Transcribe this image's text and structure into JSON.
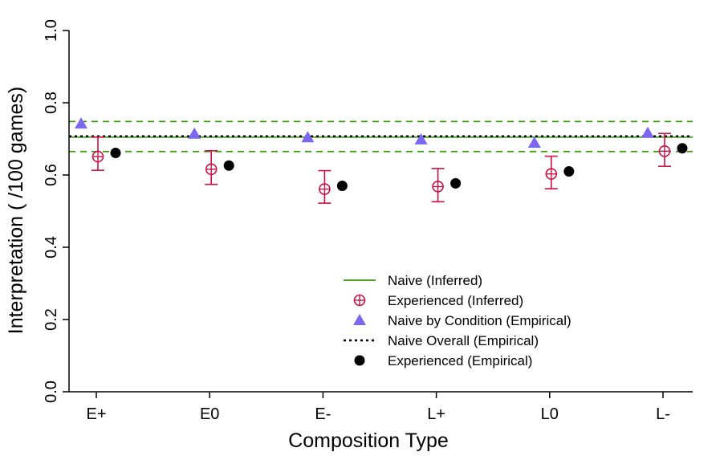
{
  "chart_data": {
    "type": "scatter",
    "title": "",
    "xlabel": "Composition Type",
    "ylabel": "Interpretation ( /100 games)",
    "categories": [
      "E+",
      "E0",
      "E-",
      "L+",
      "L0",
      "L-"
    ],
    "ylim": [
      0,
      1.0
    ],
    "yticks": [
      "0.0",
      "0.2",
      "0.4",
      "0.6",
      "0.8",
      "1.0"
    ],
    "grid": false,
    "legend_position": "bottom-center",
    "naive_inferred": {
      "name": "Naive (Inferred)",
      "color": "#3a9a10",
      "mean": 0.705,
      "lower": 0.665,
      "upper": 0.748
    },
    "naive_overall": {
      "name": "Naive Overall (Empirical)",
      "color": "#000000",
      "value": 0.707
    },
    "series": [
      {
        "name": "Experienced (Inferred)",
        "color": "#cc1144",
        "marker": "crossed-circle",
        "values": [
          0.651,
          0.616,
          0.561,
          0.568,
          0.603,
          0.666
        ],
        "lower": [
          0.613,
          0.574,
          0.522,
          0.526,
          0.562,
          0.624
        ],
        "upper": [
          0.705,
          0.667,
          0.612,
          0.618,
          0.652,
          0.715
        ]
      },
      {
        "name": "Naive by Condition (Empirical)",
        "color": "#7b68ee",
        "marker": "triangle",
        "values": [
          0.742,
          0.714,
          0.704,
          0.698,
          0.689,
          0.716
        ]
      },
      {
        "name": "Experienced (Empirical)",
        "color": "#000000",
        "marker": "dot",
        "values": [
          0.661,
          0.626,
          0.57,
          0.577,
          0.61,
          0.674
        ]
      }
    ]
  }
}
